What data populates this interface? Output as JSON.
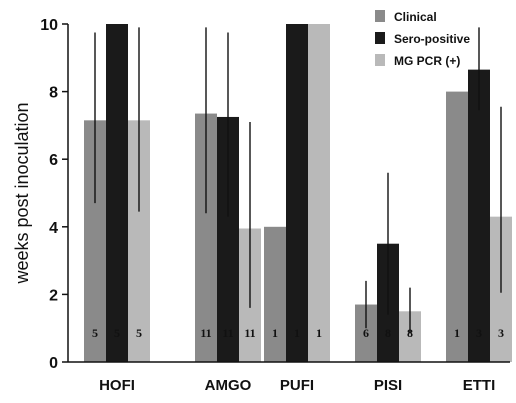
{
  "chart_data": {
    "type": "bar",
    "title": "",
    "xlabel": "",
    "ylabel": "weeks post inoculation",
    "ylim": [
      0,
      10
    ],
    "yticks": [
      0,
      2,
      4,
      6,
      8,
      10
    ],
    "grid": false,
    "legend_position": "top-right",
    "categories": [
      "HOFI",
      "AMGO",
      "PUFI",
      "PISI",
      "ETTI"
    ],
    "series": [
      {
        "name": "Clinical",
        "color": "#8a8a8a",
        "values": [
          7.15,
          7.35,
          4.0,
          1.7,
          8.0
        ],
        "error_low": [
          4.7,
          4.4,
          null,
          1.0,
          null
        ],
        "error_high": [
          9.75,
          9.9,
          null,
          2.4,
          null
        ],
        "n": [
          "5",
          "11",
          "1",
          "6",
          "1"
        ]
      },
      {
        "name": "Sero-positive",
        "color": "#1a1a1a",
        "values": [
          10.0,
          7.25,
          10.0,
          3.5,
          8.65
        ],
        "error_low": [
          null,
          4.3,
          null,
          1.4,
          7.45
        ],
        "error_high": [
          null,
          9.75,
          null,
          5.6,
          9.9
        ],
        "n": [
          "5",
          "11",
          "1",
          "8",
          "3"
        ]
      },
      {
        "name": "MG PCR (+)",
        "color": "#b9b9b9",
        "values": [
          7.15,
          3.95,
          10.0,
          1.5,
          4.3
        ],
        "error_low": [
          4.45,
          1.6,
          null,
          0.85,
          2.05
        ],
        "error_high": [
          9.9,
          7.1,
          null,
          2.2,
          7.55
        ],
        "n": [
          "5",
          "11",
          "1",
          "8",
          "3"
        ]
      }
    ]
  }
}
